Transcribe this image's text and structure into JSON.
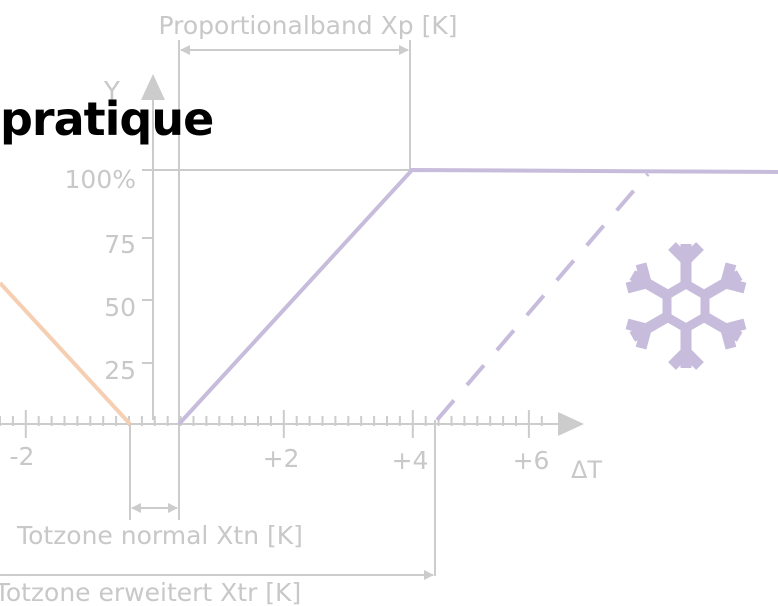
{
  "heading": "pratique",
  "labels": {
    "proportional_band": "Proportionalband Xp [K]",
    "y_axis": "Y",
    "x_axis": "ΔT",
    "deadzone_normal": "Totzone normal Xtn [K]",
    "deadzone_extended": "Totzone erweitert Xtr [K]"
  },
  "y_ticks": [
    "100%",
    "75",
    "50",
    "25"
  ],
  "x_ticks": [
    "-2",
    "+2",
    "+4",
    "+6"
  ],
  "icon": "snowflake-icon",
  "colors": {
    "axis": "#cccccc",
    "text": "#c8c8c8",
    "heating_line": "#f6cfb2",
    "cooling_line": "#c7bcdc",
    "snowflake": "#c7bcdc",
    "heading": "#000000"
  }
}
